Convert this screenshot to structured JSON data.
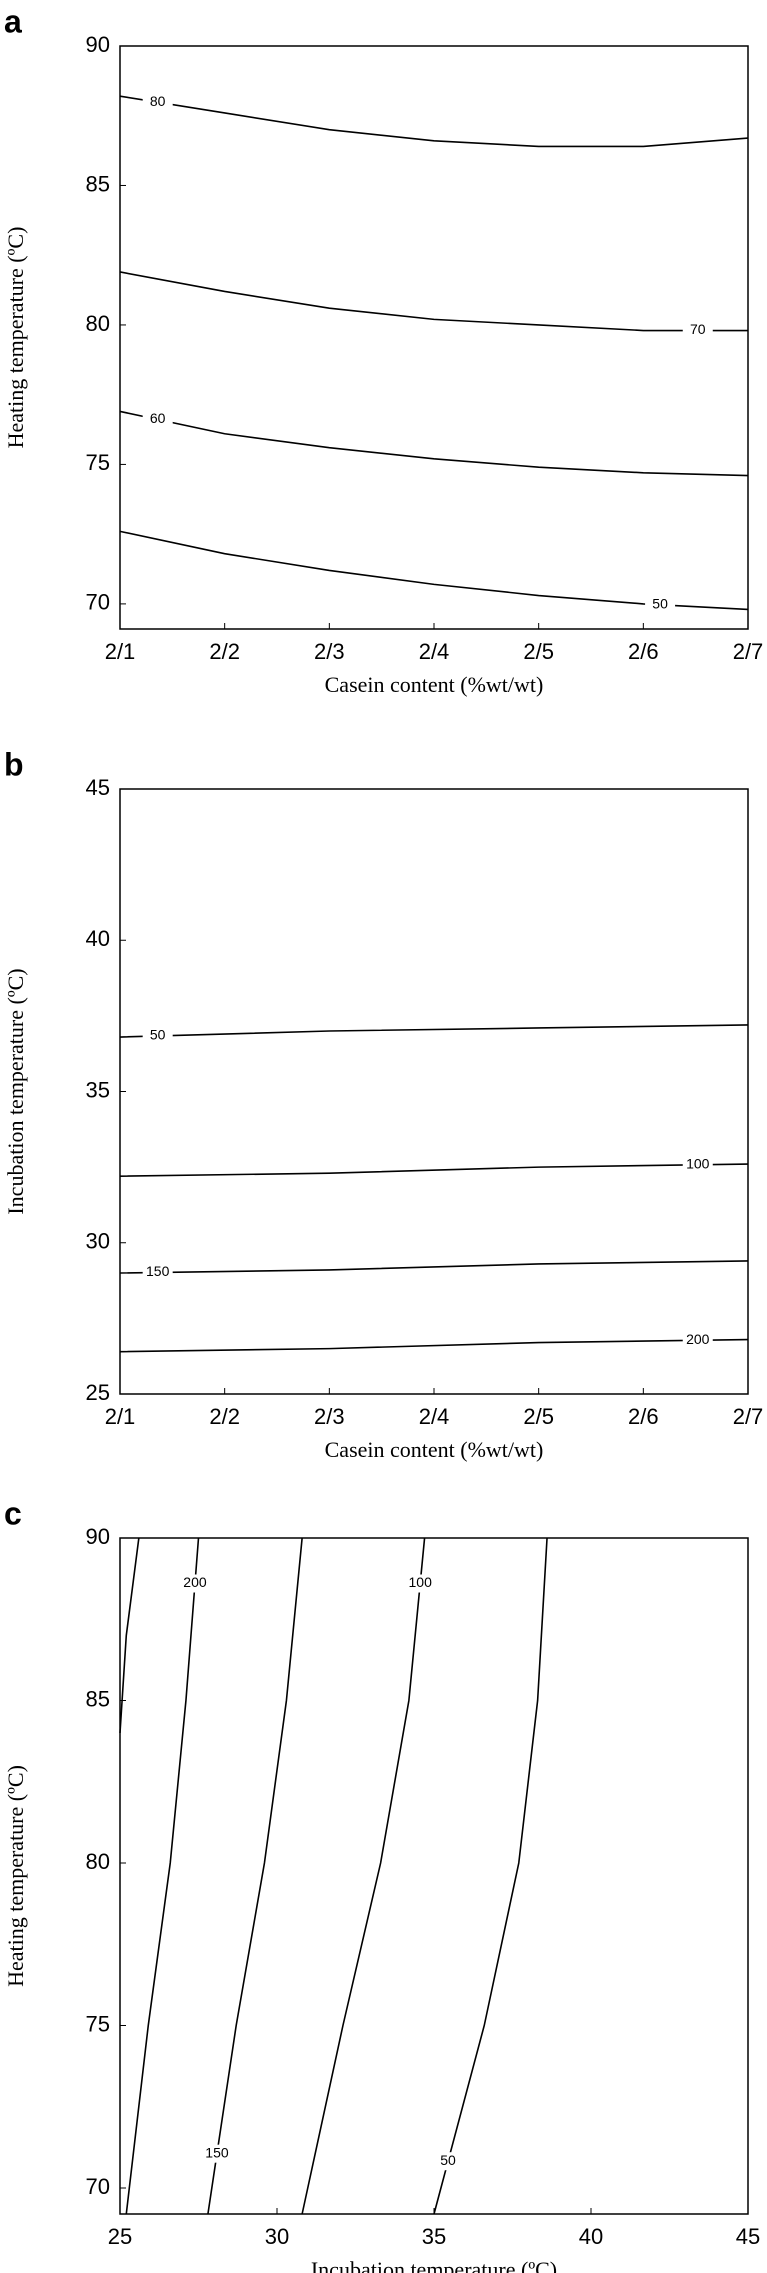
{
  "chart_data": [
    {
      "type": "contour",
      "title": "a",
      "xlabel": "Casein content (%wt/wt)",
      "ylabel": "Heating temperature  (ºC)",
      "xlim": [
        0,
        6
      ],
      "xticks": [
        {
          "value": 0,
          "label": "2/1"
        },
        {
          "value": 1,
          "label": "2/2"
        },
        {
          "value": 2,
          "label": "2/3"
        },
        {
          "value": 3,
          "label": "2/4"
        },
        {
          "value": 4,
          "label": "2/5"
        },
        {
          "value": 5,
          "label": "2/6"
        },
        {
          "value": 6,
          "label": "2/7"
        }
      ],
      "ylim": [
        69.1,
        90
      ],
      "yticks": [
        70,
        75,
        80,
        85,
        90
      ],
      "color": "#000000",
      "series": [
        {
          "name": "80",
          "x": [
            0,
            1,
            2,
            3,
            4,
            5,
            6
          ],
          "values": [
            88.2,
            87.6,
            87.0,
            86.6,
            86.4,
            86.4,
            86.7
          ]
        },
        {
          "name": "70",
          "x": [
            0,
            1,
            2,
            3,
            4,
            5,
            6
          ],
          "values": [
            81.9,
            81.2,
            80.6,
            80.2,
            80.0,
            79.8,
            79.8
          ]
        },
        {
          "name": "60",
          "x": [
            0,
            1,
            2,
            3,
            4,
            5,
            6
          ],
          "values": [
            76.9,
            76.1,
            75.6,
            75.2,
            74.9,
            74.7,
            74.6
          ]
        },
        {
          "name": "50",
          "x": [
            0,
            1,
            2,
            3,
            4,
            5,
            6
          ],
          "values": [
            72.6,
            71.8,
            71.2,
            70.7,
            70.3,
            70.0,
            69.8
          ]
        }
      ]
    },
    {
      "type": "contour",
      "title": "b",
      "xlabel": "Casein content (%wt/wt)",
      "ylabel": "Incubation temperature  (ºC)",
      "xlim": [
        0,
        6
      ],
      "xticks": [
        {
          "value": 0,
          "label": "2/1"
        },
        {
          "value": 1,
          "label": "2/2"
        },
        {
          "value": 2,
          "label": "2/3"
        },
        {
          "value": 3,
          "label": "2/4"
        },
        {
          "value": 4,
          "label": "2/5"
        },
        {
          "value": 5,
          "label": "2/6"
        },
        {
          "value": 6,
          "label": "2/7"
        }
      ],
      "ylim": [
        25,
        45
      ],
      "yticks": [
        25,
        30,
        35,
        40,
        45
      ],
      "color": "#000000",
      "series": [
        {
          "name": "50",
          "x": [
            0,
            2,
            4,
            6
          ],
          "values": [
            36.8,
            37.0,
            37.1,
            37.2
          ]
        },
        {
          "name": "100",
          "x": [
            0,
            2,
            4,
            6
          ],
          "values": [
            32.2,
            32.3,
            32.5,
            32.6
          ]
        },
        {
          "name": "150",
          "x": [
            0,
            2,
            4,
            6
          ],
          "values": [
            29.0,
            29.1,
            29.3,
            29.4
          ]
        },
        {
          "name": "200",
          "x": [
            0,
            2,
            4,
            6
          ],
          "values": [
            26.4,
            26.5,
            26.7,
            26.8
          ]
        }
      ]
    },
    {
      "type": "contour",
      "title": "c",
      "xlabel": "Incubation temperature (ºC)",
      "ylabel": "Heating temperature  (ºC)",
      "xlim": [
        25,
        45
      ],
      "xticks": [
        25,
        30,
        35,
        40,
        45
      ],
      "ylim": [
        69.2,
        90
      ],
      "yticks": [
        70,
        75,
        80,
        85,
        90
      ],
      "color": "#000000",
      "series": [
        {
          "x": [
            25.0,
            25.2,
            25.6
          ],
          "values": [
            84,
            87,
            90
          ]
        },
        {
          "name": "200",
          "x": [
            25.2,
            25.9,
            26.6,
            27.1,
            27.5
          ],
          "values": [
            69.2,
            75,
            80,
            85,
            90
          ]
        },
        {
          "name": "150",
          "x": [
            27.8,
            28.7,
            29.6,
            30.3,
            30.8
          ],
          "values": [
            69.2,
            75,
            80,
            85,
            90
          ]
        },
        {
          "name": "100",
          "x": [
            30.8,
            32.1,
            33.3,
            34.2,
            34.7
          ],
          "values": [
            69.2,
            75,
            80,
            85,
            90
          ]
        },
        {
          "name": "50",
          "x": [
            35.0,
            36.6,
            37.7,
            38.3,
            38.6
          ],
          "values": [
            69.2,
            75,
            80,
            85,
            90
          ]
        }
      ]
    }
  ]
}
